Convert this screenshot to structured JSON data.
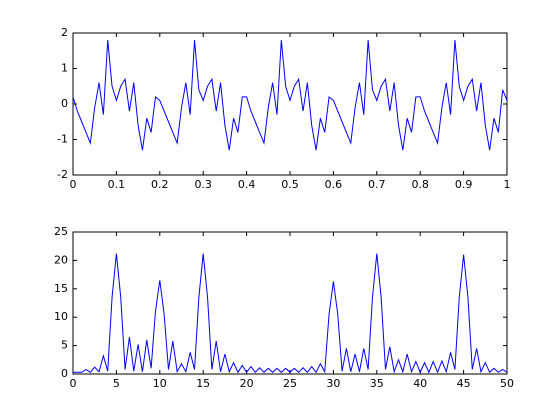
{
  "chart_data": [
    {
      "type": "line",
      "color": "#0000ff",
      "xlim": [
        0,
        1
      ],
      "ylim": [
        -2,
        2
      ],
      "xticks": [
        0,
        0.1,
        0.2,
        0.3,
        0.4,
        0.5,
        0.6,
        0.7,
        0.8,
        0.9,
        1
      ],
      "yticks": [
        -2,
        -1,
        0,
        1,
        2
      ],
      "x": [
        0,
        0.01,
        0.02,
        0.03,
        0.04,
        0.05,
        0.06,
        0.07,
        0.08,
        0.09,
        0.1,
        0.11,
        0.12,
        0.13,
        0.14,
        0.15,
        0.16,
        0.17,
        0.18,
        0.19,
        0.2,
        0.21,
        0.22,
        0.23,
        0.24,
        0.25,
        0.26,
        0.27,
        0.28,
        0.29,
        0.3,
        0.31,
        0.32,
        0.33,
        0.34,
        0.35,
        0.36,
        0.37,
        0.38,
        0.39,
        0.4,
        0.41,
        0.42,
        0.43,
        0.44,
        0.45,
        0.46,
        0.47,
        0.48,
        0.49,
        0.5,
        0.51,
        0.52,
        0.53,
        0.54,
        0.55,
        0.56,
        0.57,
        0.58,
        0.59,
        0.6,
        0.61,
        0.62,
        0.63,
        0.64,
        0.65,
        0.66,
        0.67,
        0.68,
        0.69,
        0.7,
        0.71,
        0.72,
        0.73,
        0.74,
        0.75,
        0.76,
        0.77,
        0.78,
        0.79,
        0.8,
        0.81,
        0.82,
        0.83,
        0.84,
        0.85,
        0.86,
        0.87,
        0.88,
        0.89,
        0.9,
        0.91,
        0.92,
        0.93,
        0.94,
        0.95,
        0.96,
        0.97,
        0.98,
        0.99,
        1
      ],
      "values": [
        0.2,
        -0.2,
        -0.5,
        -0.8,
        -1.1,
        -0.1,
        0.6,
        -0.3,
        1.8,
        0.5,
        0.1,
        0.5,
        0.7,
        -0.2,
        0.6,
        -0.6,
        -1.3,
        -0.4,
        -0.8,
        0.2,
        0.1,
        -0.2,
        -0.5,
        -0.8,
        -1.1,
        -0.1,
        0.6,
        -0.3,
        1.8,
        0.4,
        0.1,
        0.5,
        0.7,
        -0.2,
        0.6,
        -0.6,
        -1.3,
        -0.4,
        -0.8,
        0.2,
        0.2,
        -0.2,
        -0.5,
        -0.8,
        -1.1,
        -0.1,
        0.6,
        -0.3,
        1.8,
        0.5,
        0.1,
        0.5,
        0.7,
        -0.2,
        0.6,
        -0.6,
        -1.3,
        -0.4,
        -0.8,
        0.2,
        0.1,
        -0.2,
        -0.5,
        -0.8,
        -1.1,
        -0.1,
        0.6,
        -0.3,
        1.8,
        0.4,
        0.1,
        0.5,
        0.7,
        -0.2,
        0.6,
        -0.6,
        -1.3,
        -0.4,
        -0.8,
        0.2,
        0.2,
        -0.2,
        -0.5,
        -0.8,
        -1.1,
        -0.1,
        0.6,
        -0.3,
        1.8,
        0.5,
        0.1,
        0.5,
        0.7,
        -0.2,
        0.6,
        -0.6,
        -1.3,
        -0.4,
        -0.8,
        0.4,
        0.1
      ]
    },
    {
      "type": "line",
      "color": "#0000ff",
      "xlim": [
        0,
        50
      ],
      "ylim": [
        0,
        25
      ],
      "xticks": [
        0,
        5,
        10,
        15,
        20,
        25,
        30,
        35,
        40,
        45,
        50
      ],
      "yticks": [
        0,
        5,
        10,
        15,
        20,
        25
      ],
      "x": [
        0,
        0.5,
        1,
        1.5,
        2,
        2.5,
        3,
        3.5,
        4,
        4.5,
        5,
        5.5,
        6,
        6.5,
        7,
        7.5,
        8,
        8.5,
        9,
        9.5,
        10,
        10.5,
        11,
        11.5,
        12,
        12.5,
        13,
        13.5,
        14,
        14.5,
        15,
        15.5,
        16,
        16.5,
        17,
        17.5,
        18,
        18.5,
        19,
        19.5,
        20,
        20.5,
        21,
        21.5,
        22,
        22.5,
        23,
        23.5,
        24,
        24.5,
        25,
        25.5,
        26,
        26.5,
        27,
        27.5,
        28,
        28.5,
        29,
        29.5,
        30,
        30.5,
        31,
        31.5,
        32,
        32.5,
        33,
        33.5,
        34,
        34.5,
        35,
        35.5,
        36,
        36.5,
        37,
        37.5,
        38,
        38.5,
        39,
        39.5,
        40,
        40.5,
        41,
        41.5,
        42,
        42.5,
        43,
        43.5,
        44,
        44.5,
        45,
        45.5,
        46,
        46.5,
        47,
        47.5,
        48,
        48.5,
        49,
        49.5,
        50
      ],
      "values": [
        0.3,
        0.3,
        0.3,
        0.8,
        0.3,
        1.2,
        0.4,
        3.2,
        0.5,
        13.5,
        21.2,
        13.5,
        0.8,
        6.5,
        0.5,
        5.2,
        0.4,
        6.0,
        1.0,
        11,
        16.5,
        10.5,
        0.8,
        5.8,
        0.4,
        1.8,
        0.4,
        3.8,
        0.8,
        13.5,
        21.2,
        13.5,
        0.8,
        5.8,
        0.4,
        3.5,
        0.4,
        2.0,
        0.3,
        1.5,
        0.3,
        1.3,
        0.3,
        1.1,
        0.3,
        1.0,
        0.3,
        1.0,
        0.3,
        1.0,
        0.3,
        1.0,
        0.3,
        1.1,
        0.3,
        1.3,
        0.3,
        1.8,
        0.4,
        10.5,
        16.3,
        10.5,
        0.5,
        4.5,
        0.4,
        3.5,
        0.4,
        4.5,
        0.8,
        13.5,
        21.2,
        13.5,
        0.8,
        4.8,
        0.4,
        2.5,
        0.4,
        3.5,
        0.4,
        2.2,
        0.3,
        2.0,
        0.3,
        2.2,
        0.3,
        2.3,
        0.4,
        3.8,
        0.8,
        13.5,
        21.0,
        13.5,
        0.8,
        4.5,
        0.4,
        2.0,
        0.3,
        1.0,
        0.3,
        0.8,
        0.3
      ]
    }
  ]
}
